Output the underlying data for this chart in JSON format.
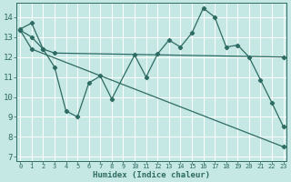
{
  "title": "",
  "xlabel": "Humidex (Indice chaleur)",
  "bg_color": "#c5e8e5",
  "grid_color": "#b0d8d4",
  "line_color": "#2e6b62",
  "x_ticks": [
    0,
    1,
    2,
    3,
    4,
    5,
    6,
    7,
    8,
    9,
    10,
    11,
    12,
    13,
    14,
    15,
    16,
    17,
    18,
    19,
    20,
    21,
    22,
    23
  ],
  "ylim": [
    6.8,
    14.7
  ],
  "xlim": [
    -0.3,
    23.3
  ],
  "y_ticks": [
    7,
    8,
    9,
    10,
    11,
    12,
    13,
    14
  ],
  "series": [
    {
      "x": [
        0,
        1,
        2,
        3,
        4,
        5,
        6,
        7,
        8,
        10,
        11,
        12,
        13,
        14,
        15,
        16,
        17,
        18,
        19,
        20,
        21,
        22,
        23
      ],
      "y": [
        13.4,
        13.7,
        12.4,
        11.5,
        9.3,
        9.0,
        10.7,
        11.05,
        9.9,
        12.1,
        11.0,
        12.15,
        12.85,
        12.5,
        13.2,
        14.45,
        14.0,
        12.5,
        12.6,
        12.0,
        10.85,
        9.7,
        8.5
      ]
    },
    {
      "x": [
        0,
        1,
        2,
        3,
        23
      ],
      "y": [
        13.35,
        13.0,
        12.4,
        12.2,
        12.0
      ]
    },
    {
      "x": [
        0,
        1,
        23
      ],
      "y": [
        13.35,
        12.4,
        7.5
      ]
    }
  ]
}
